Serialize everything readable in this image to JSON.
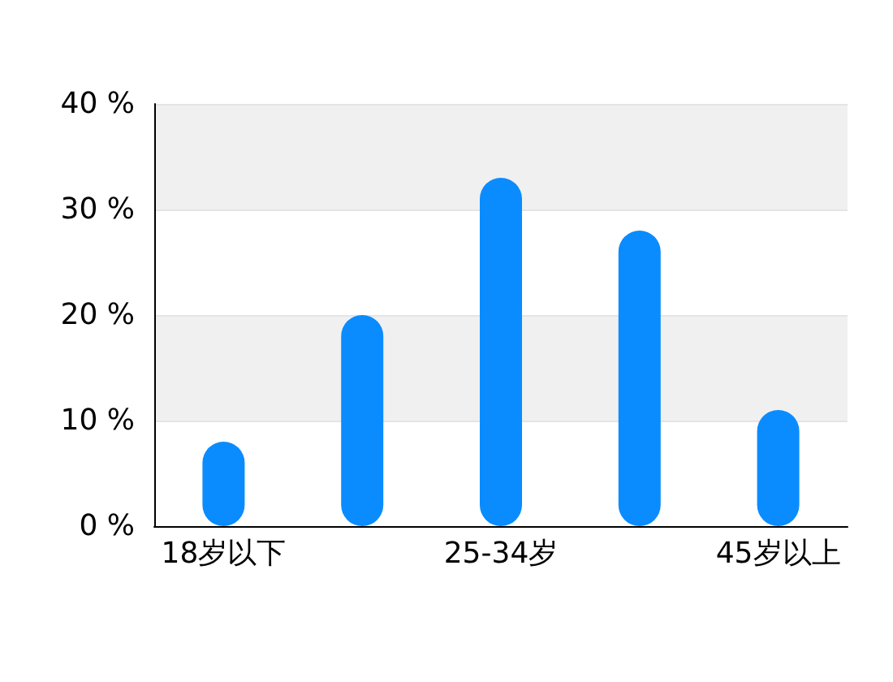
{
  "chart_data": {
    "type": "bar",
    "categories": [
      "18岁以下",
      null,
      "25-34岁",
      null,
      "45岁以上"
    ],
    "values": [
      8,
      20,
      33,
      28,
      11
    ],
    "color": "#0a8cff",
    "ylim": [
      0,
      40
    ],
    "yticks": [
      {
        "value": 0,
        "label": "0 %"
      },
      {
        "value": 10,
        "label": "10 %"
      },
      {
        "value": 20,
        "label": "20 %"
      },
      {
        "value": 30,
        "label": "30 %"
      },
      {
        "value": 40,
        "label": "40 %"
      }
    ],
    "grid": true
  }
}
